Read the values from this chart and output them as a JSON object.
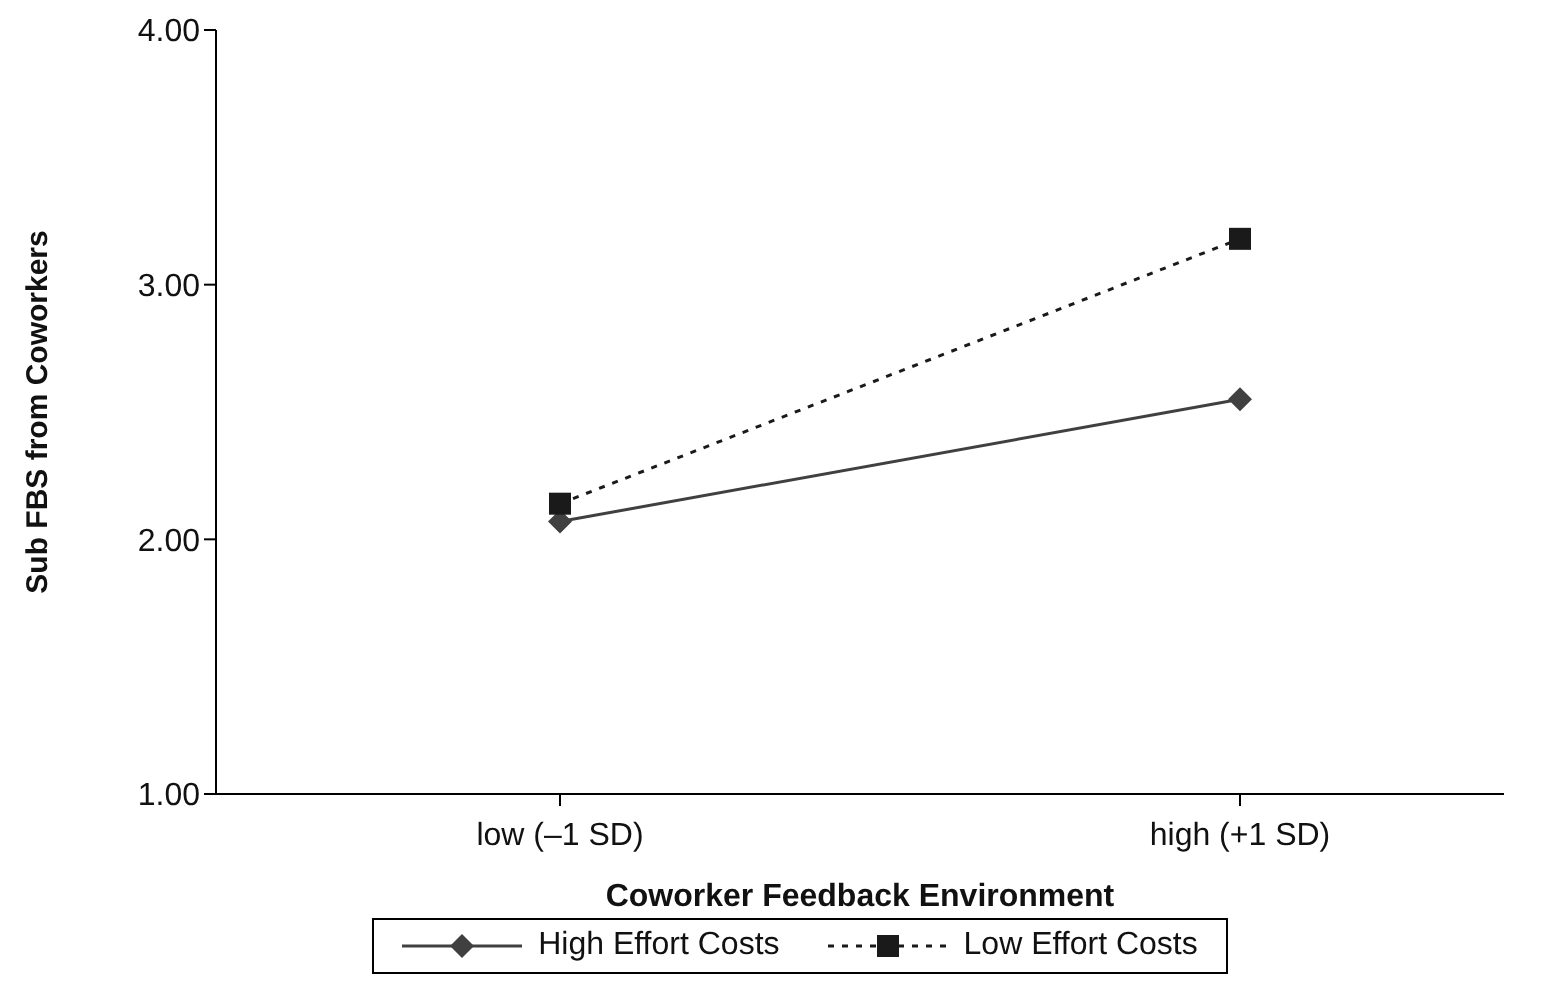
{
  "chart_data": {
    "type": "line",
    "xlabel": "Coworker Feedback Environment",
    "ylabel": "Sub FBS from Coworkers",
    "categories": [
      "low (–1 SD)",
      "high (+1 SD)"
    ],
    "series": [
      {
        "name": "High Effort Costs",
        "color": "#404040",
        "values": [
          2.07,
          2.55
        ],
        "marker": "diamond",
        "line_style": "solid"
      },
      {
        "name": "Low Effort Costs",
        "color": "#1a1a1a",
        "values": [
          2.14,
          3.18
        ],
        "marker": "square",
        "line_style": "dotted"
      }
    ],
    "ylim": [
      1,
      4
    ],
    "yticks": [
      {
        "value": 1,
        "label": "1.00"
      },
      {
        "value": 2,
        "label": "2.00"
      },
      {
        "value": 3,
        "label": "3.00"
      },
      {
        "value": 4,
        "label": "4.00"
      }
    ],
    "grid": false,
    "legend": "bottom"
  }
}
